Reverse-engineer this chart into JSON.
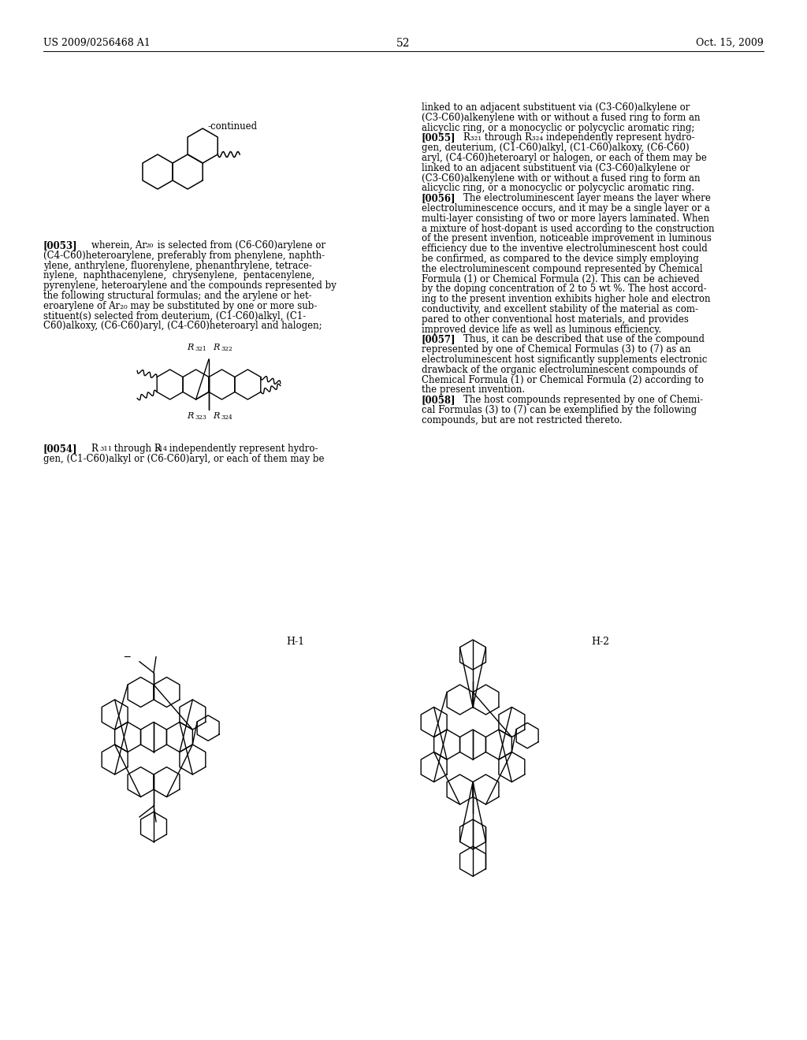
{
  "background_color": "#ffffff",
  "page_number": "52",
  "header_left": "US 2009/0256468 A1",
  "header_right": "Oct. 15, 2009",
  "label_H1": "H-1",
  "label_H2": "H-2"
}
